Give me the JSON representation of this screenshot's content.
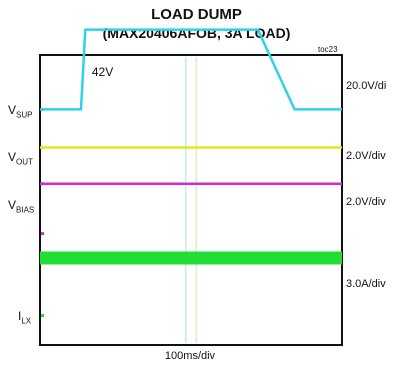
{
  "chart_data": {
    "type": "line",
    "title": "LOAD DUMP",
    "subtitle": "(MAX20406AFOB, 3A LOAD)",
    "tag": "toc23",
    "x_scale": "100ms/div",
    "annotation": "42V",
    "channels": [
      {
        "name": "V",
        "sub": "SUP",
        "scale": "20.0V/di",
        "color": "#2fd2e6",
        "x": [
          0,
          0.95,
          1.05,
          3.0,
          4.0,
          4.5,
          5.05,
          5.9,
          6.4,
          7.0
        ],
        "y": [
          2.5,
          2.5,
          4.7,
          4.7,
          4.7,
          4.7,
          4.7,
          2.5,
          2.5,
          2.5
        ]
      },
      {
        "name": "V",
        "sub": "OUT",
        "scale": "2.0V/div",
        "color": "#e6e61a",
        "x": [
          0,
          7
        ],
        "y": [
          1.45,
          1.45
        ]
      },
      {
        "name": "V",
        "sub": "BIAS",
        "scale": "2.0V/div",
        "color": "#d42ad4",
        "x": [
          0,
          7
        ],
        "y": [
          0.45,
          0.45
        ]
      },
      {
        "name": "I",
        "sub": "LX",
        "scale": "3.0A/div",
        "color": "#22dd33",
        "x": [
          0,
          7
        ],
        "y": [
          -1.6,
          -1.6
        ]
      }
    ]
  },
  "colors": {
    "cursor1": "#9be8e8",
    "cursor2": "#c8e89b",
    "frame": "#111111"
  }
}
